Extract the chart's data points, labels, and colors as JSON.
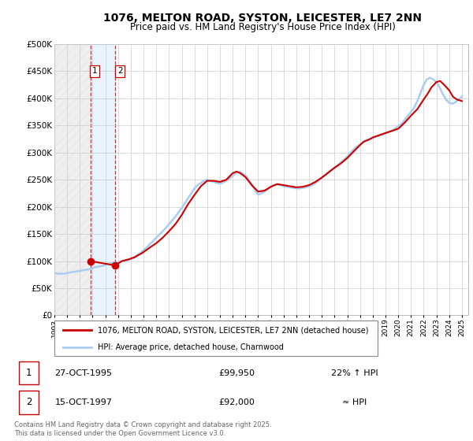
{
  "title": "1076, MELTON ROAD, SYSTON, LEICESTER, LE7 2NN",
  "subtitle": "Price paid vs. HM Land Registry's House Price Index (HPI)",
  "title_fontsize": 10,
  "subtitle_fontsize": 8.5,
  "background_color": "#ffffff",
  "plot_bg_color": "#ffffff",
  "grid_color": "#cccccc",
  "xmin": 1993.0,
  "xmax": 2025.5,
  "ymin": 0,
  "ymax": 500000,
  "yticks": [
    0,
    50000,
    100000,
    150000,
    200000,
    250000,
    300000,
    350000,
    400000,
    450000,
    500000
  ],
  "ytick_labels": [
    "£0",
    "£50K",
    "£100K",
    "£150K",
    "£200K",
    "£250K",
    "£300K",
    "£350K",
    "£400K",
    "£450K",
    "£500K"
  ],
  "xtick_years": [
    1993,
    1994,
    1995,
    1996,
    1997,
    1998,
    1999,
    2000,
    2001,
    2002,
    2003,
    2004,
    2005,
    2006,
    2007,
    2008,
    2009,
    2010,
    2011,
    2012,
    2013,
    2014,
    2015,
    2016,
    2017,
    2018,
    2019,
    2020,
    2021,
    2022,
    2023,
    2024,
    2025
  ],
  "hpi_line_color": "#aaccee",
  "price_line_color": "#cc0000",
  "sale1_x": 1995.82,
  "sale1_y": 99950,
  "sale2_x": 1997.79,
  "sale2_y": 92000,
  "sale1_label": "1",
  "sale2_label": "2",
  "shade1_xmin": 1993.0,
  "shade1_xmax": 1995.82,
  "shade2_xmin": 1995.82,
  "shade2_xmax": 1997.79,
  "legend_label_price": "1076, MELTON ROAD, SYSTON, LEICESTER, LE7 2NN (detached house)",
  "legend_label_hpi": "HPI: Average price, detached house, Charnwood",
  "table_row1": [
    "1",
    "27-OCT-1995",
    "£99,950",
    "22% ↑ HPI"
  ],
  "table_row2": [
    "2",
    "15-OCT-1997",
    "£92,000",
    "≈ HPI"
  ],
  "footer_text": "Contains HM Land Registry data © Crown copyright and database right 2025.\nThis data is licensed under the Open Government Licence v3.0.",
  "hpi_data_x": [
    1993.0,
    1993.25,
    1993.5,
    1993.75,
    1994.0,
    1994.25,
    1994.5,
    1994.75,
    1995.0,
    1995.25,
    1995.5,
    1995.75,
    1996.0,
    1996.25,
    1996.5,
    1996.75,
    1997.0,
    1997.25,
    1997.5,
    1997.75,
    1998.0,
    1998.25,
    1998.5,
    1998.75,
    1999.0,
    1999.25,
    1999.5,
    1999.75,
    2000.0,
    2000.25,
    2000.5,
    2000.75,
    2001.0,
    2001.25,
    2001.5,
    2001.75,
    2002.0,
    2002.25,
    2002.5,
    2002.75,
    2003.0,
    2003.25,
    2003.5,
    2003.75,
    2004.0,
    2004.25,
    2004.5,
    2004.75,
    2005.0,
    2005.25,
    2005.5,
    2005.75,
    2006.0,
    2006.25,
    2006.5,
    2006.75,
    2007.0,
    2007.25,
    2007.5,
    2007.75,
    2008.0,
    2008.25,
    2008.5,
    2008.75,
    2009.0,
    2009.25,
    2009.5,
    2009.75,
    2010.0,
    2010.25,
    2010.5,
    2010.75,
    2011.0,
    2011.25,
    2011.5,
    2011.75,
    2012.0,
    2012.25,
    2012.5,
    2012.75,
    2013.0,
    2013.25,
    2013.5,
    2013.75,
    2014.0,
    2014.25,
    2014.5,
    2014.75,
    2015.0,
    2015.25,
    2015.5,
    2015.75,
    2016.0,
    2016.25,
    2016.5,
    2016.75,
    2017.0,
    2017.25,
    2017.5,
    2017.75,
    2018.0,
    2018.25,
    2018.5,
    2018.75,
    2019.0,
    2019.25,
    2019.5,
    2019.75,
    2020.0,
    2020.25,
    2020.5,
    2020.75,
    2021.0,
    2021.25,
    2021.5,
    2021.75,
    2022.0,
    2022.25,
    2022.5,
    2022.75,
    2023.0,
    2023.25,
    2023.5,
    2023.75,
    2024.0,
    2024.25,
    2024.5,
    2024.75,
    2025.0
  ],
  "hpi_data_y": [
    78000,
    77000,
    76500,
    77000,
    78000,
    79000,
    80000,
    81000,
    82000,
    83000,
    84000,
    85000,
    87000,
    89000,
    90000,
    91000,
    93000,
    95000,
    96000,
    97000,
    98000,
    99000,
    100000,
    101000,
    104000,
    107000,
    111000,
    115000,
    120000,
    125000,
    131000,
    137000,
    143000,
    149000,
    155000,
    161000,
    168000,
    175000,
    182000,
    190000,
    198000,
    207000,
    216000,
    225000,
    234000,
    240000,
    244000,
    248000,
    250000,
    248000,
    246000,
    244000,
    243000,
    245000,
    248000,
    252000,
    257000,
    262000,
    265000,
    262000,
    258000,
    251000,
    242000,
    230000,
    222000,
    225000,
    228000,
    232000,
    237000,
    240000,
    241000,
    240000,
    238000,
    237000,
    236000,
    235000,
    234000,
    234000,
    235000,
    236000,
    238000,
    240000,
    244000,
    248000,
    253000,
    258000,
    263000,
    268000,
    272000,
    277000,
    282000,
    287000,
    293000,
    300000,
    306000,
    311000,
    315000,
    320000,
    323000,
    325000,
    327000,
    329000,
    331000,
    333000,
    336000,
    338000,
    340000,
    344000,
    349000,
    353000,
    360000,
    368000,
    375000,
    383000,
    395000,
    410000,
    425000,
    435000,
    438000,
    435000,
    430000,
    420000,
    408000,
    398000,
    392000,
    390000,
    393000,
    398000,
    403000
  ],
  "price_data_x": [
    1995.82,
    1997.79,
    1998.3,
    1998.8,
    1999.3,
    1999.9,
    2000.5,
    2001.0,
    2001.5,
    2002.0,
    2002.5,
    2003.0,
    2003.5,
    2004.0,
    2004.5,
    2005.0,
    2005.5,
    2006.0,
    2006.5,
    2007.0,
    2007.3,
    2007.6,
    2008.0,
    2008.5,
    2009.0,
    2009.5,
    2010.0,
    2010.5,
    2011.0,
    2011.5,
    2012.0,
    2012.5,
    2013.0,
    2013.5,
    2014.0,
    2014.5,
    2015.0,
    2015.5,
    2016.0,
    2016.5,
    2017.0,
    2017.3,
    2017.8,
    2018.0,
    2018.5,
    2019.0,
    2019.5,
    2020.0,
    2020.5,
    2021.0,
    2021.5,
    2022.0,
    2022.3,
    2022.6,
    2023.0,
    2023.3,
    2023.6,
    2024.0,
    2024.3,
    2024.6,
    2025.0
  ],
  "price_data_y": [
    99950,
    92000,
    100000,
    103000,
    107000,
    115000,
    125000,
    133000,
    143000,
    155000,
    168000,
    185000,
    205000,
    222000,
    238000,
    248000,
    248000,
    246000,
    250000,
    262000,
    265000,
    262000,
    255000,
    240000,
    228000,
    230000,
    237000,
    242000,
    240000,
    238000,
    236000,
    237000,
    240000,
    246000,
    254000,
    263000,
    272000,
    280000,
    290000,
    302000,
    314000,
    320000,
    325000,
    328000,
    332000,
    336000,
    340000,
    344000,
    355000,
    368000,
    380000,
    398000,
    408000,
    420000,
    430000,
    432000,
    425000,
    415000,
    403000,
    398000,
    395000
  ]
}
